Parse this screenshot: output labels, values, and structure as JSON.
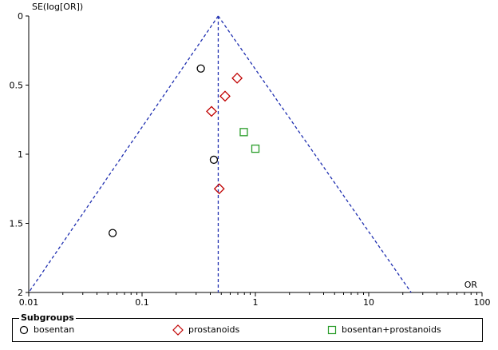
{
  "chart_data": {
    "type": "scatter",
    "title": "",
    "xlabel": "OR",
    "ylabel": "SE(log[OR])",
    "x_scale": "log",
    "xlim": [
      0.01,
      100
    ],
    "ylim": [
      0,
      2
    ],
    "y_inverted": true,
    "x_ticks": [
      "0.01",
      "0.1",
      "1",
      "10",
      "100"
    ],
    "y_ticks": [
      "0",
      "0.5",
      "1",
      "1.5",
      "2"
    ],
    "pooled_or": 0.47,
    "funnel_color": "#1f2fb0",
    "legend_title": "Subgroups",
    "series": [
      {
        "name": "bosentan",
        "marker": "circle",
        "color": "#000000",
        "points": [
          {
            "x": 0.33,
            "y": 0.38
          },
          {
            "x": 0.43,
            "y": 1.04
          },
          {
            "x": 0.055,
            "y": 1.57
          }
        ]
      },
      {
        "name": "prostanoids",
        "marker": "diamond",
        "color": "#c00000",
        "points": [
          {
            "x": 0.69,
            "y": 0.45
          },
          {
            "x": 0.54,
            "y": 0.58
          },
          {
            "x": 0.41,
            "y": 0.69
          },
          {
            "x": 0.48,
            "y": 1.25
          }
        ]
      },
      {
        "name": "bosentan+prostanoids",
        "marker": "square",
        "color": "#2a9d2a",
        "points": [
          {
            "x": 0.79,
            "y": 0.84
          },
          {
            "x": 1.0,
            "y": 0.96
          }
        ]
      }
    ]
  }
}
